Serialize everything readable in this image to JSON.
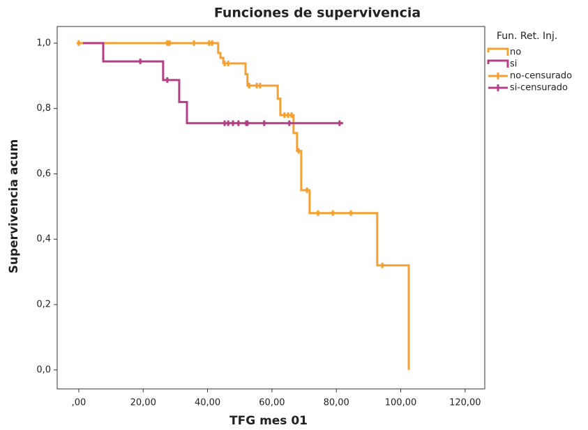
{
  "chart_data": {
    "type": "kaplan-meier",
    "title": "Funciones de supervivencia",
    "x_label": "TFG mes 01",
    "y_label": "Supervivencia acum",
    "legend_title": "Fun. Ret. Inj.",
    "xlim": [
      -6.7,
      126.1
    ],
    "ylim": [
      -0.058,
      1.051
    ],
    "xticks": [
      {
        "value": 0,
        "label": ",00"
      },
      {
        "value": 20,
        "label": "20,00"
      },
      {
        "value": 40,
        "label": "40,00"
      },
      {
        "value": 60,
        "label": "60,00"
      },
      {
        "value": 80,
        "label": "80,00"
      },
      {
        "value": 100,
        "label": "100,00"
      },
      {
        "value": 120,
        "label": "120,00"
      }
    ],
    "yticks": [
      {
        "value": 0,
        "label": "0,0"
      },
      {
        "value": 0.2,
        "label": "0,2"
      },
      {
        "value": 0.4,
        "label": "0,4"
      },
      {
        "value": 0.6,
        "label": "0,6"
      },
      {
        "value": 0.8,
        "label": "0,8"
      },
      {
        "value": 1,
        "label": "1,0"
      }
    ],
    "series": [
      {
        "name": "no",
        "kind": "step",
        "color": "#f5a030",
        "x": [
          0,
          43.3,
          44,
          44.9,
          51.8,
          52.4,
          61.8,
          62.6,
          66.7,
          67.8,
          69.1,
          71.7,
          92.7,
          102.5
        ],
        "values": [
          1,
          0.97,
          0.955,
          0.938,
          0.905,
          0.87,
          0.83,
          0.78,
          0.725,
          0.67,
          0.55,
          0.48,
          0.32,
          0
        ]
      },
      {
        "name": "si",
        "kind": "step",
        "color": "#b43f86",
        "x": [
          1.3,
          7.6,
          26.2,
          31.2,
          33.6,
          82.1
        ],
        "values": [
          1,
          0.944,
          0.887,
          0.82,
          0.755,
          0.755
        ]
      },
      {
        "name": "no-censurado",
        "kind": "censored",
        "color": "#f5a030",
        "x": [
          0,
          27.5,
          28.2,
          35.8,
          40.5,
          41.4,
          45.3,
          46.4,
          52.9,
          55.3,
          56.3,
          63.9,
          65,
          66.1,
          68.3,
          70.9,
          74.3,
          78.9,
          84.5,
          94.3
        ],
        "values": [
          1,
          1,
          1,
          1,
          1,
          1,
          0.938,
          0.938,
          0.87,
          0.87,
          0.87,
          0.78,
          0.78,
          0.78,
          0.67,
          0.55,
          0.48,
          0.48,
          0.48,
          0.32
        ]
      },
      {
        "name": "si-censurado",
        "kind": "censored",
        "color": "#b43f86",
        "x": [
          19.1,
          27.5,
          45.3,
          46.4,
          47.9,
          49.6,
          52,
          52.4,
          57.6,
          65.4,
          81
        ],
        "values": [
          0.944,
          0.887,
          0.755,
          0.755,
          0.755,
          0.755,
          0.755,
          0.755,
          0.755,
          0.755,
          0.755
        ]
      }
    ]
  }
}
